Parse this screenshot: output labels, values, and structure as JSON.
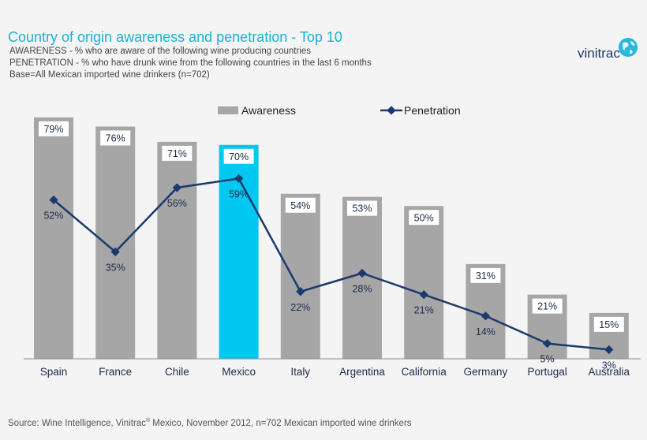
{
  "header": {
    "title": "Country of origin awareness and penetration - Top 10",
    "line1": "AWARENESS - % who are aware of the following wine producing countries",
    "line2": "PENETRATION - % who have drunk wine from the following countries in the last 6 months",
    "line3": "Base=All Mexican imported wine drinkers (n=702)"
  },
  "logo": {
    "text": "vinitrac",
    "icon": "globe-icon"
  },
  "footer": {
    "source_pre": "Source: Wine Intelligence, Vinitrac",
    "source_reg": "®",
    "source_post": " Mexico,  November  2012, n=702 Mexican imported wine drinkers"
  },
  "colors": {
    "bar": "#a6a6a6",
    "highlight": "#00c8f0",
    "line": "#1a3a6e",
    "title": "#1ab2d6"
  },
  "chart_data": {
    "type": "bar",
    "categories": [
      "Spain",
      "France",
      "Chile",
      "Mexico",
      "Italy",
      "Argentina",
      "California",
      "Germany",
      "Portugal",
      "Australia"
    ],
    "series": [
      {
        "name": "Awareness",
        "type": "bar",
        "values": [
          79,
          76,
          71,
          70,
          54,
          53,
          50,
          31,
          21,
          15
        ],
        "labels": [
          "79%",
          "76%",
          "71%",
          "70%",
          "54%",
          "53%",
          "50%",
          "31%",
          "21%",
          "15%"
        ]
      },
      {
        "name": "Penetration",
        "type": "line",
        "values": [
          52,
          35,
          56,
          59,
          22,
          28,
          21,
          14,
          5,
          3
        ],
        "labels": [
          "52%",
          "35%",
          "56%",
          "59%",
          "22%",
          "28%",
          "21%",
          "14%",
          "5%",
          "3%"
        ]
      }
    ],
    "highlight_category": "Mexico",
    "ylim": [
      0,
      80
    ],
    "legend_position": "top",
    "grid": false
  }
}
